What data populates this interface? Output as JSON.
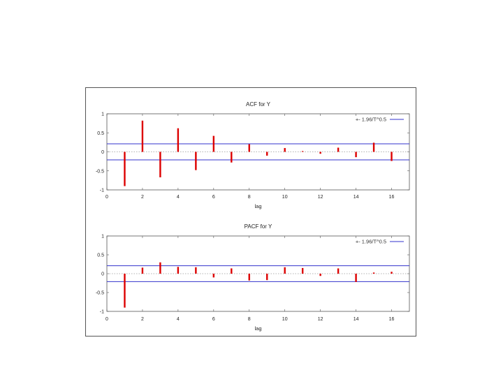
{
  "chart_data": [
    {
      "type": "bar",
      "title": "ACF for Y",
      "xlabel": "lag",
      "ylabel": "",
      "xlim": [
        0,
        17
      ],
      "ylim": [
        -1,
        1
      ],
      "xticks": [
        0,
        2,
        4,
        6,
        8,
        10,
        12,
        14,
        16
      ],
      "yticks": [
        1,
        0.5,
        0,
        -0.5,
        -1
      ],
      "ytick_labels": [
        "1",
        "0.5",
        "0",
        "-0.5",
        "-1"
      ],
      "legend": "+- 1.96/T^0.5",
      "legend_position": "top-right",
      "bound": 0.21,
      "x": [
        1,
        2,
        3,
        4,
        5,
        6,
        7,
        8,
        9,
        10,
        11,
        12,
        13,
        14,
        15,
        16
      ],
      "values": [
        -0.9,
        0.82,
        -0.67,
        0.62,
        -0.48,
        0.42,
        -0.28,
        0.2,
        -0.1,
        0.1,
        0.02,
        -0.05,
        0.11,
        -0.14,
        0.24,
        -0.24
      ],
      "colors": {
        "bars": "#dd0000",
        "bounds": "#3333cc",
        "zero": "#999999"
      }
    },
    {
      "type": "bar",
      "title": "PACF for Y",
      "xlabel": "lag",
      "ylabel": "",
      "xlim": [
        0,
        17
      ],
      "ylim": [
        -1,
        1
      ],
      "xticks": [
        0,
        2,
        4,
        6,
        8,
        10,
        12,
        14,
        16
      ],
      "yticks": [
        1,
        0.5,
        0,
        -0.5,
        -1
      ],
      "ytick_labels": [
        "1",
        "0.5",
        "0",
        "-0.5",
        "-1"
      ],
      "legend": "+- 1.96/T^0.5",
      "legend_position": "top-right",
      "bound": 0.21,
      "x": [
        1,
        2,
        3,
        4,
        5,
        6,
        7,
        8,
        9,
        10,
        11,
        12,
        13,
        14,
        15,
        16
      ],
      "values": [
        -0.9,
        0.16,
        0.3,
        0.18,
        0.17,
        -0.1,
        0.14,
        -0.18,
        -0.17,
        0.17,
        0.15,
        -0.06,
        0.14,
        -0.22,
        0.03,
        0.05
      ],
      "colors": {
        "bars": "#dd0000",
        "bounds": "#3333cc",
        "zero": "#999999"
      }
    }
  ]
}
